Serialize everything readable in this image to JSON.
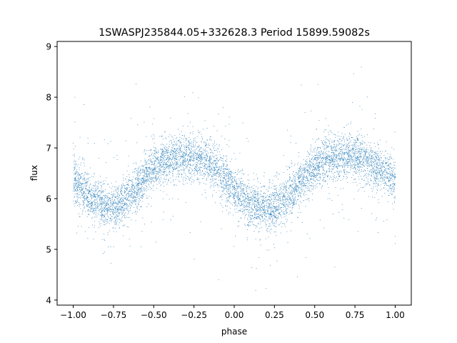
{
  "chart_data": {
    "type": "scatter",
    "title": "1SWASPJ235844.05+332628.3 Period 15899.59082s",
    "xlabel": "phase",
    "ylabel": "flux",
    "xlim": [
      -1.1,
      1.1
    ],
    "ylim": [
      3.9,
      9.1
    ],
    "x_ticks": [
      -1.0,
      -0.75,
      -0.5,
      -0.25,
      0.0,
      0.25,
      0.5,
      0.75,
      1.0
    ],
    "x_tick_labels": [
      "−1.00",
      "−0.75",
      "−0.50",
      "−0.25",
      "0.00",
      "0.25",
      "0.50",
      "0.75",
      "1.00"
    ],
    "y_ticks": [
      4,
      5,
      6,
      7,
      8,
      9
    ],
    "y_tick_labels": [
      "4",
      "5",
      "6",
      "7",
      "8",
      "9"
    ],
    "grid": false,
    "marker_color": "#1f77b4",
    "series": [
      {
        "phase_range": [
          -1.0,
          1.0
        ],
        "trend": {
          "phase": [
            -1.0,
            -0.9,
            -0.8,
            -0.75,
            -0.7,
            -0.6,
            -0.5,
            -0.4,
            -0.3,
            -0.25,
            -0.2,
            -0.1,
            0.0,
            0.1,
            0.2,
            0.25,
            0.3,
            0.4,
            0.5,
            0.6,
            0.7,
            0.75,
            0.8,
            0.9,
            1.0
          ],
          "flux": [
            6.4,
            6.05,
            5.85,
            5.83,
            5.9,
            6.25,
            6.6,
            6.78,
            6.85,
            6.84,
            6.78,
            6.55,
            6.2,
            5.9,
            5.8,
            5.82,
            5.92,
            6.3,
            6.62,
            6.8,
            6.86,
            6.85,
            6.78,
            6.6,
            6.4
          ]
        },
        "scatter_sigma": 0.22
      }
    ]
  }
}
